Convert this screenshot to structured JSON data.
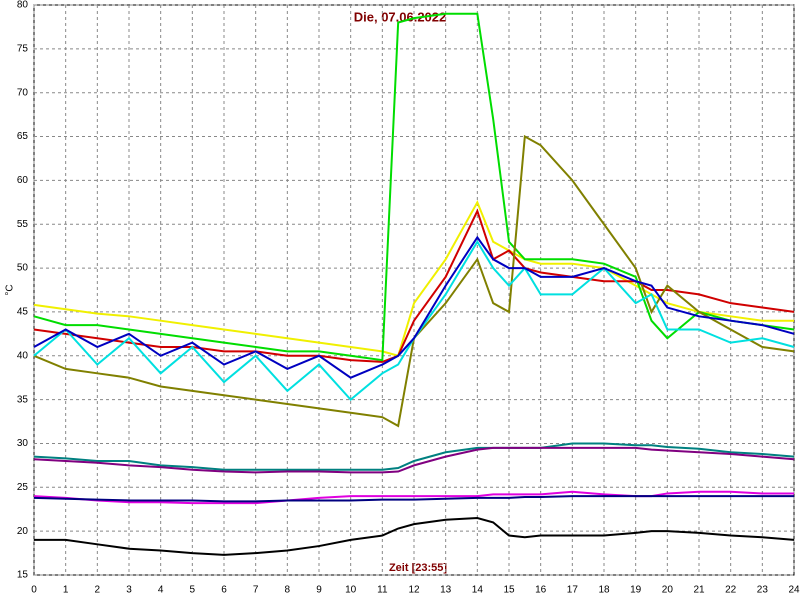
{
  "chart_data": {
    "type": "line",
    "title": "Die, 07.06.2022",
    "x_label": "Zeit [23:55]",
    "y_label": "°C",
    "xlim": [
      0,
      24
    ],
    "ylim": [
      15,
      80
    ],
    "grid": true,
    "xticks": [
      0,
      1,
      2,
      3,
      4,
      5,
      6,
      7,
      8,
      9,
      10,
      11,
      12,
      13,
      14,
      15,
      16,
      17,
      18,
      19,
      20,
      21,
      22,
      23,
      24
    ],
    "yticks": [
      15,
      20,
      25,
      30,
      35,
      40,
      45,
      50,
      55,
      60,
      65,
      70,
      75,
      80
    ],
    "x": [
      0,
      1,
      2,
      3,
      4,
      5,
      6,
      7,
      8,
      9,
      10,
      11,
      11.5,
      12,
      13,
      14,
      14.5,
      15,
      15.5,
      16,
      17,
      18,
      19,
      19.5,
      20,
      21,
      22,
      23,
      24
    ],
    "series": [
      {
        "color": "#f0f000",
        "values": [
          45.8,
          45.3,
          44.8,
          44.5,
          44,
          43.5,
          43,
          42.5,
          42,
          41.5,
          41,
          40.5,
          40,
          46,
          51,
          57.5,
          53,
          52,
          51,
          50.5,
          50.5,
          50,
          48,
          47,
          46,
          45,
          44.5,
          44,
          44
        ]
      },
      {
        "color": "#d00000",
        "values": [
          43,
          42.5,
          42,
          41.5,
          41,
          41,
          40.5,
          40.5,
          40,
          40,
          39.5,
          39.3,
          40,
          44,
          49,
          56.5,
          51,
          52,
          50,
          49.5,
          49,
          48.5,
          48.5,
          47.5,
          47.5,
          47,
          46,
          45.5,
          45
        ]
      },
      {
        "color": "#00dd00",
        "values": [
          44.5,
          43.5,
          43.5,
          43,
          42.5,
          42,
          41.5,
          41,
          40.5,
          40.5,
          40,
          39.5,
          78,
          78.5,
          79,
          79,
          67,
          53,
          51,
          51,
          51,
          50.5,
          49,
          44,
          42,
          45,
          44,
          43.5,
          43
        ]
      },
      {
        "color": "#808000",
        "values": [
          40,
          38.5,
          38,
          37.5,
          36.5,
          36,
          35.5,
          35,
          34.5,
          34,
          33.5,
          33,
          32,
          42,
          46,
          51,
          46,
          45,
          65,
          64,
          60,
          55,
          50,
          45,
          48,
          45,
          43,
          41,
          40.5
        ]
      },
      {
        "color": "#00e0e0",
        "values": [
          40,
          43,
          39,
          42,
          38,
          41,
          37,
          40,
          36,
          39,
          35,
          38,
          39,
          42,
          47,
          53,
          50,
          48,
          50,
          47,
          47,
          50,
          46,
          47,
          43,
          43,
          41.5,
          42,
          41
        ]
      },
      {
        "color": "#0000c0",
        "values": [
          41,
          43,
          41,
          42.5,
          40,
          41.5,
          39,
          40.5,
          38.5,
          40,
          37.5,
          39,
          40,
          42,
          48,
          53.5,
          51,
          50,
          50,
          49,
          49,
          50,
          48.5,
          48,
          45.5,
          44.5,
          44,
          43.5,
          42.5
        ]
      },
      {
        "color": "#008080",
        "values": [
          28.5,
          28.3,
          28,
          28,
          27.5,
          27.3,
          27,
          27,
          27,
          27,
          27,
          27,
          27.2,
          28,
          29,
          29.5,
          29.5,
          29.5,
          29.5,
          29.5,
          30,
          30,
          29.8,
          29.8,
          29.6,
          29.4,
          29,
          28.8,
          28.5
        ]
      },
      {
        "color": "#800080",
        "values": [
          28.2,
          28,
          27.8,
          27.5,
          27.3,
          27,
          26.8,
          26.7,
          26.8,
          26.8,
          26.7,
          26.7,
          26.8,
          27.5,
          28.5,
          29.3,
          29.5,
          29.5,
          29.5,
          29.5,
          29.5,
          29.5,
          29.5,
          29.3,
          29.2,
          29,
          28.8,
          28.5,
          28.2
        ]
      },
      {
        "color": "#e000e0",
        "values": [
          24,
          23.8,
          23.5,
          23.3,
          23.3,
          23.2,
          23.2,
          23.2,
          23.5,
          23.8,
          24,
          24,
          24,
          24,
          24,
          24,
          24.2,
          24.2,
          24.2,
          24.2,
          24.5,
          24.2,
          24,
          24,
          24.3,
          24.5,
          24.5,
          24.3,
          24.3
        ]
      },
      {
        "color": "#000080",
        "values": [
          23.8,
          23.7,
          23.6,
          23.5,
          23.5,
          23.5,
          23.4,
          23.4,
          23.5,
          23.5,
          23.5,
          23.6,
          23.6,
          23.6,
          23.7,
          23.8,
          23.8,
          23.8,
          23.9,
          23.9,
          24,
          24,
          24,
          24,
          24,
          24,
          24,
          24,
          24
        ]
      },
      {
        "color": "#000000",
        "values": [
          19,
          19,
          18.5,
          18,
          17.8,
          17.5,
          17.3,
          17.5,
          17.8,
          18.3,
          19,
          19.5,
          20.3,
          20.8,
          21.3,
          21.5,
          21,
          19.5,
          19.3,
          19.5,
          19.5,
          19.5,
          19.8,
          20,
          20,
          19.8,
          19.5,
          19.3,
          19
        ]
      }
    ]
  }
}
